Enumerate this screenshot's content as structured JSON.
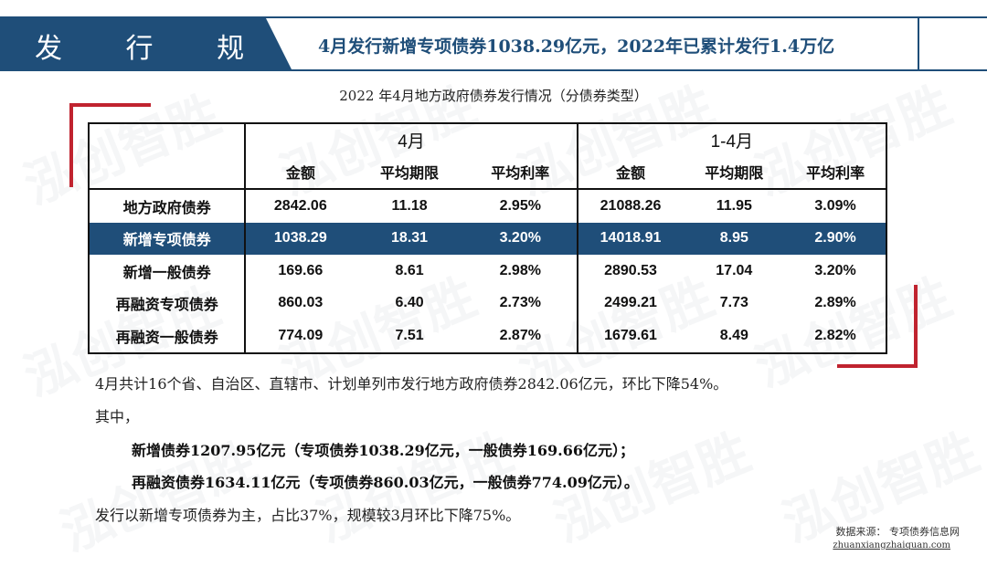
{
  "header": {
    "section": "发 行 规 模",
    "title": "4月发行新增专项债券1038.29亿元，2022年已累计发行1.4万亿"
  },
  "watermark": "泓创智胜",
  "table": {
    "caption": "2022 年4月地方政府债券发行情况（分债券类型）",
    "groups": [
      "4月",
      "1-4月"
    ],
    "sub_headers": [
      "金额",
      "平均期限",
      "平均利率",
      "金额",
      "平均期限",
      "平均利率"
    ],
    "rows": [
      {
        "label": "地方政府债券",
        "cells": [
          "2842.06",
          "11.18",
          "2.95%",
          "21088.26",
          "11.95",
          "3.09%"
        ]
      },
      {
        "label": "新增专项债券",
        "cells": [
          "1038.29",
          "18.31",
          "3.20%",
          "14018.91",
          "8.95",
          "2.90%"
        ]
      },
      {
        "label": "新增一般债券",
        "cells": [
          "169.66",
          "8.61",
          "2.98%",
          "2890.53",
          "17.04",
          "3.20%"
        ]
      },
      {
        "label": "再融资专项债券",
        "cells": [
          "860.03",
          "6.40",
          "2.73%",
          "2499.21",
          "7.73",
          "2.89%"
        ]
      },
      {
        "label": "再融资一般债券",
        "cells": [
          "774.09",
          "7.51",
          "2.87%",
          "1679.61",
          "8.49",
          "2.82%"
        ]
      }
    ]
  },
  "body": {
    "line1": "4月共计16个省、自治区、直辖市、计划单列市发行地方政府债券2842.06亿元，环比下降54%。",
    "line2": "其中，",
    "line3": "新增债券1207.95亿元（专项债券1038.29亿元，一般债券169.66亿元）；",
    "line4": "再融资债券1634.11亿元（专项债券860.03亿元，一般债券774.09亿元）。",
    "line5": "发行以新增专项债券为主，占比37%，规模较3月环比下降75%。"
  },
  "source": {
    "label": "数据来源： 专项债券信息网",
    "url": "zhuanxiangzhaiquan.com"
  },
  "colors": {
    "navy": "#1f4e79",
    "red": "#c0232f"
  }
}
